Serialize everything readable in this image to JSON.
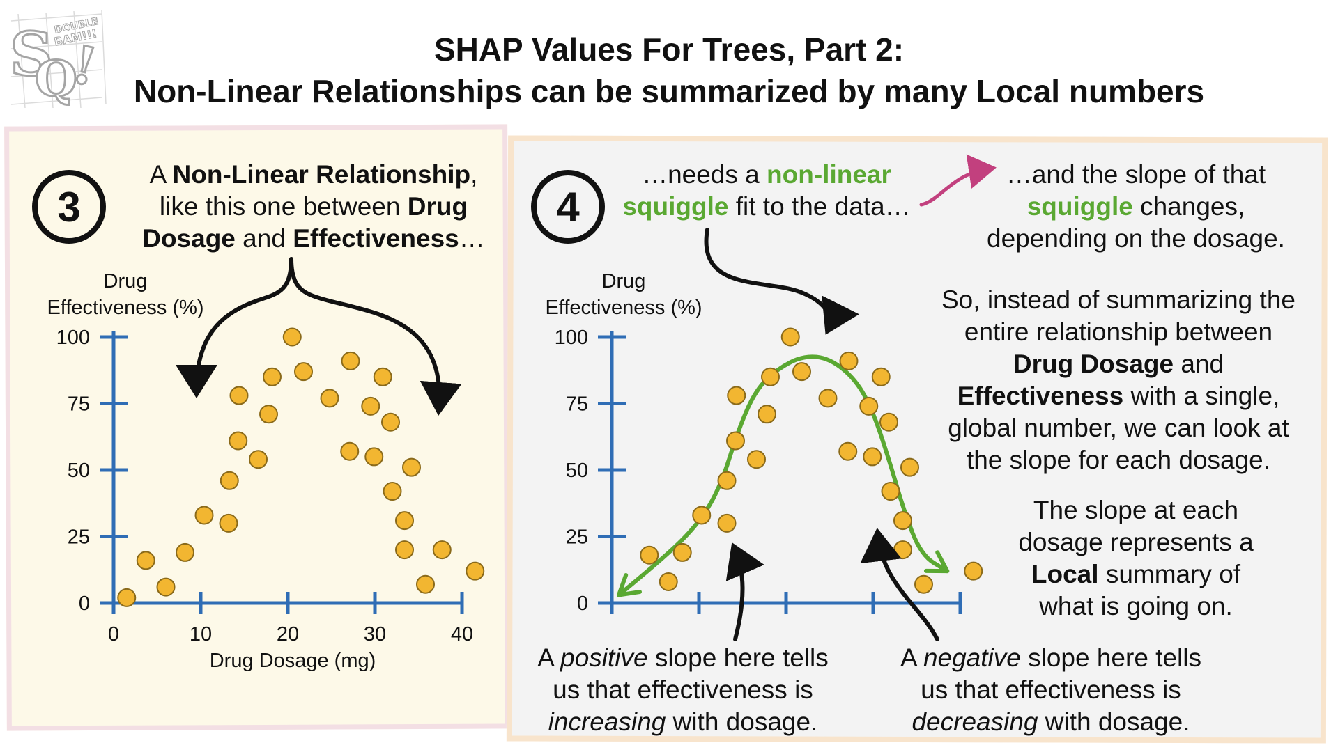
{
  "logo": {
    "letters": "SQ!",
    "text": "DOUBLE BAM!!!"
  },
  "title": {
    "line1": "SHAP Values For Trees, Part 2:",
    "line2": "Non-Linear Relationships can be summarized by many Local numbers"
  },
  "left_panel": {
    "badge": "3",
    "caption": [
      {
        "t": "A ",
        "b": false
      },
      {
        "t": "Non-Linear Relationship",
        "b": true
      },
      {
        "t": ",",
        "b": false
      },
      {
        "t": "\n",
        "b": false
      },
      {
        "t": "like this one between ",
        "b": false
      },
      {
        "t": "Drug",
        "b": true
      },
      {
        "t": "\n",
        "b": false
      },
      {
        "t": "Dosage",
        "b": true
      },
      {
        "t": " and ",
        "b": false
      },
      {
        "t": "Effectiveness",
        "b": true
      },
      {
        "t": "…",
        "b": false
      }
    ]
  },
  "right_panel": {
    "badge": "4",
    "caption_squiggle": [
      {
        "t": "…needs a ",
        "c": ""
      },
      {
        "t": "non-linear",
        "c": "green"
      },
      {
        "t": "\n",
        "c": ""
      },
      {
        "t": "squiggle",
        "c": "green"
      },
      {
        "t": " fit to the data…",
        "c": ""
      }
    ],
    "caption_slope": [
      {
        "t": "…and the slope of that",
        "c": ""
      },
      {
        "t": "\n",
        "c": ""
      },
      {
        "t": "squiggle",
        "c": "green"
      },
      {
        "t": " changes,",
        "c": ""
      },
      {
        "t": "\n",
        "c": ""
      },
      {
        "t": "depending on the dosage.",
        "c": ""
      }
    ],
    "paragraph_global": [
      {
        "t": "So, instead of summarizing the",
        "c": ""
      },
      {
        "t": "\n",
        "c": ""
      },
      {
        "t": "entire relationship between",
        "c": ""
      },
      {
        "t": "\n",
        "c": ""
      },
      {
        "t": "Drug Dosage",
        "c": "b"
      },
      {
        "t": " and",
        "c": ""
      },
      {
        "t": "\n",
        "c": ""
      },
      {
        "t": "Effectiveness",
        "c": "b"
      },
      {
        "t": " with a single,",
        "c": ""
      },
      {
        "t": "\n",
        "c": ""
      },
      {
        "t": "global number, we can look at",
        "c": ""
      },
      {
        "t": "\n",
        "c": ""
      },
      {
        "t": "the slope for each dosage.",
        "c": ""
      }
    ],
    "paragraph_local": [
      {
        "t": "The slope at each",
        "c": ""
      },
      {
        "t": "\n",
        "c": ""
      },
      {
        "t": "dosage represents a",
        "c": ""
      },
      {
        "t": "\n",
        "c": ""
      },
      {
        "t": "Local",
        "c": "b"
      },
      {
        "t": " summary of",
        "c": ""
      },
      {
        "t": "\n",
        "c": ""
      },
      {
        "t": "what is going on.",
        "c": ""
      }
    ],
    "note_positive": [
      {
        "t": "A ",
        "c": ""
      },
      {
        "t": "positive",
        "c": "i"
      },
      {
        "t": " slope here tells",
        "c": ""
      },
      {
        "t": "\n",
        "c": ""
      },
      {
        "t": "us that effectiveness is",
        "c": ""
      },
      {
        "t": "\n",
        "c": ""
      },
      {
        "t": "increasing",
        "c": "i"
      },
      {
        "t": " with dosage.",
        "c": ""
      }
    ],
    "note_negative": [
      {
        "t": "A ",
        "c": ""
      },
      {
        "t": "negative",
        "c": "i"
      },
      {
        "t": " slope here tells",
        "c": ""
      },
      {
        "t": "\n",
        "c": ""
      },
      {
        "t": "us that effectiveness is",
        "c": ""
      },
      {
        "t": "\n",
        "c": ""
      },
      {
        "t": "decreasing",
        "c": "i"
      },
      {
        "t": " with dosage.",
        "c": ""
      }
    ]
  },
  "colors": {
    "axis": "#2f6db5",
    "point_fill": "#f2b631",
    "point_stroke": "#8a6a1a",
    "squiggle": "#5aa832",
    "pink_arrow": "#c2407e",
    "left_bg": "#fdf9e8",
    "right_bg": "#f3f3f3"
  },
  "chart_data": [
    {
      "type": "scatter",
      "title": "",
      "xlabel": "Drug Dosage (mg)",
      "ylabel": "Drug Effectiveness (%)",
      "xlim": [
        0,
        40
      ],
      "ylim": [
        0,
        100
      ],
      "x_ticks": [
        "0",
        "10",
        "20",
        "30",
        "40"
      ],
      "y_ticks": [
        "0",
        "25",
        "50",
        "75",
        "100"
      ],
      "points": [
        [
          1.5,
          2
        ],
        [
          3.7,
          16
        ],
        [
          6,
          6
        ],
        [
          8.2,
          19
        ],
        [
          10.4,
          33
        ],
        [
          13.2,
          30
        ],
        [
          13.3,
          46
        ],
        [
          14.3,
          61
        ],
        [
          14.4,
          78
        ],
        [
          16.6,
          54
        ],
        [
          17.8,
          71
        ],
        [
          18.2,
          85
        ],
        [
          20.5,
          100
        ],
        [
          21.8,
          87
        ],
        [
          24.8,
          77
        ],
        [
          27.1,
          57
        ],
        [
          27.2,
          91
        ],
        [
          29.5,
          74
        ],
        [
          29.9,
          55
        ],
        [
          30.9,
          85
        ],
        [
          31.8,
          68
        ],
        [
          32,
          42
        ],
        [
          33.4,
          31
        ],
        [
          33.4,
          20
        ],
        [
          34.2,
          51
        ],
        [
          35.8,
          7
        ],
        [
          37.7,
          20
        ],
        [
          41.5,
          12
        ]
      ]
    },
    {
      "type": "scatter",
      "title": "",
      "xlabel": "",
      "ylabel": "Drug Effectiveness (%)",
      "xlim": [
        0,
        40
      ],
      "ylim": [
        0,
        100
      ],
      "x_ticks": [],
      "y_ticks": [
        "0",
        "25",
        "50",
        "75",
        "100"
      ],
      "points": [
        [
          4.3,
          18
        ],
        [
          6.5,
          8
        ],
        [
          8.1,
          19
        ],
        [
          10.3,
          33
        ],
        [
          13.2,
          30
        ],
        [
          13.2,
          46
        ],
        [
          14.2,
          61
        ],
        [
          14.3,
          78
        ],
        [
          16.6,
          54
        ],
        [
          17.8,
          71
        ],
        [
          18.2,
          85
        ],
        [
          20.5,
          100
        ],
        [
          21.8,
          87
        ],
        [
          24.8,
          77
        ],
        [
          27.1,
          57
        ],
        [
          27.2,
          91
        ],
        [
          29.5,
          74
        ],
        [
          29.9,
          55
        ],
        [
          30.9,
          85
        ],
        [
          31.8,
          68
        ],
        [
          32,
          42
        ],
        [
          33.4,
          31
        ],
        [
          33.4,
          20
        ],
        [
          34.2,
          51
        ],
        [
          35.8,
          7
        ],
        [
          41.5,
          12
        ]
      ],
      "squiggle": [
        [
          0.8,
          3
        ],
        [
          6,
          17
        ],
        [
          10,
          30
        ],
        [
          12.5,
          44
        ],
        [
          14.5,
          65
        ],
        [
          16.5,
          80
        ],
        [
          19,
          88
        ],
        [
          22,
          93
        ],
        [
          25,
          92
        ],
        [
          28,
          84
        ],
        [
          30,
          72
        ],
        [
          32,
          52
        ],
        [
          33.5,
          35
        ],
        [
          35.5,
          18
        ],
        [
          38.5,
          12
        ]
      ]
    }
  ]
}
